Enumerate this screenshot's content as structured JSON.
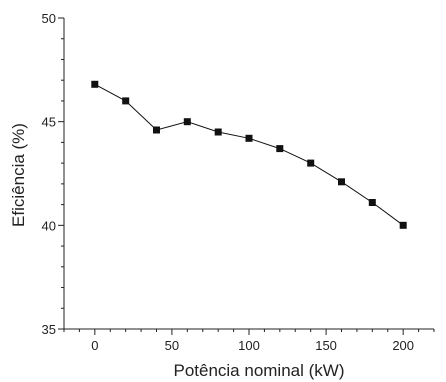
{
  "chart_data": {
    "type": "line",
    "xlabel": "Potência nominal (kW)",
    "ylabel": "Eficiência (%)",
    "xlim": [
      -20,
      220
    ],
    "ylim": [
      35,
      50
    ],
    "x_ticks": [
      0,
      50,
      100,
      150,
      200
    ],
    "x_tick_labels": [
      "0",
      "50",
      "100",
      "150",
      "200"
    ],
    "y_ticks": [
      35,
      40,
      45,
      50
    ],
    "y_tick_labels": [
      "35",
      "40",
      "45",
      "50"
    ],
    "grid": false,
    "marker": "square",
    "series": [
      {
        "x": [
          0,
          20,
          40,
          60,
          80,
          100,
          120,
          140,
          160,
          180,
          200
        ],
        "values": [
          46.8,
          46.0,
          44.6,
          45.0,
          44.5,
          44.2,
          43.7,
          43.0,
          42.1,
          41.1,
          40.0
        ],
        "color": "#111111"
      }
    ]
  }
}
